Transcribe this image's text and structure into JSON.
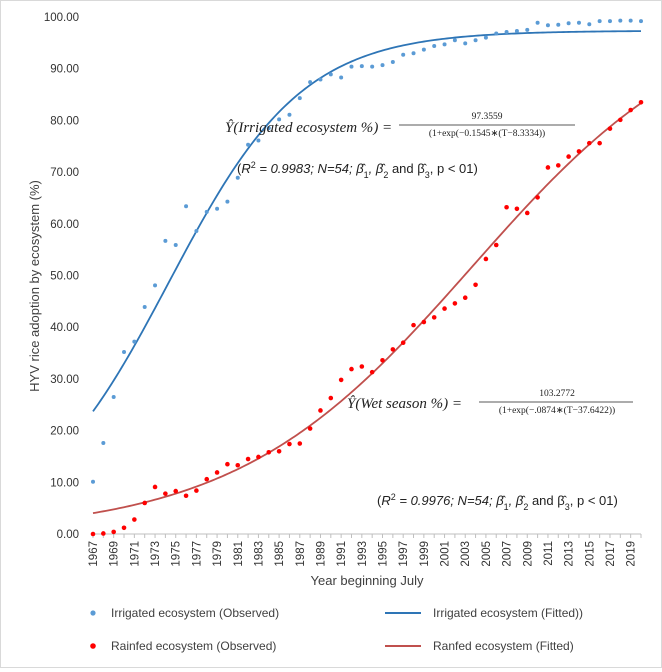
{
  "chart_data": {
    "type": "scatter",
    "xlabel": "Year beginning July",
    "ylabel": "HYV rice adoption by ecosystem (%)",
    "ylim": [
      0,
      100
    ],
    "yticks": [
      "0.00",
      "10.00",
      "20.00",
      "30.00",
      "40.00",
      "50.00",
      "60.00",
      "70.00",
      "80.00",
      "90.00",
      "100.00"
    ],
    "xlim": [
      1967,
      2020
    ],
    "xticks": [
      "1967",
      "1969",
      "1971",
      "1973",
      "1975",
      "1977",
      "1979",
      "1981",
      "1983",
      "1985",
      "1987",
      "1989",
      "1991",
      "1993",
      "1995",
      "1997",
      "1999",
      "2001",
      "2003",
      "2005",
      "2007",
      "2009",
      "2011",
      "2013",
      "2015",
      "2017",
      "2019"
    ],
    "grid": false,
    "legend_position": "bottom",
    "series": [
      {
        "name": "Irrigated ecosystem (Observed)",
        "kind": "scatter",
        "color": "#5b9bd5",
        "x": [
          1967,
          1968,
          1969,
          1970,
          1971,
          1972,
          1973,
          1974,
          1975,
          1976,
          1977,
          1978,
          1979,
          1980,
          1981,
          1982,
          1983,
          1984,
          1985,
          1986,
          1987,
          1988,
          1989,
          1990,
          1991,
          1992,
          1993,
          1994,
          1995,
          1996,
          1997,
          1998,
          1999,
          2000,
          2001,
          2002,
          2003,
          2004,
          2005,
          2006,
          2007,
          2008,
          2009,
          2010,
          2011,
          2012,
          2013,
          2014,
          2015,
          2016,
          2017,
          2018,
          2019,
          2020
        ],
        "y": [
          10.1,
          17.6,
          26.5,
          35.2,
          37.2,
          43.9,
          48.1,
          56.7,
          55.9,
          63.4,
          58.6,
          62.3,
          62.9,
          64.3,
          68.9,
          75.3,
          76.1,
          78.5,
          80.2,
          81.1,
          84.3,
          87.4,
          87.9,
          88.9,
          88.3,
          90.4,
          90.5,
          90.4,
          90.7,
          91.3,
          92.7,
          93.0,
          93.7,
          94.4,
          94.7,
          95.5,
          94.9,
          95.5,
          96.0,
          96.8,
          97.1,
          97.3,
          97.5,
          98.9,
          98.4,
          98.5,
          98.8,
          98.9,
          98.6,
          99.2,
          99.2,
          99.3,
          99.3,
          99.2
        ]
      },
      {
        "name": "Irrigated ecosystem (Fitted))",
        "kind": "line",
        "color": "#2e75b6",
        "model": {
          "a": 97.3559,
          "b": 0.1545,
          "c": 8.3334
        }
      },
      {
        "name": "Rainfed ecosystem (Observed)",
        "kind": "scatter",
        "color": "#ff0000",
        "x": [
          1967,
          1968,
          1969,
          1970,
          1971,
          1972,
          1973,
          1974,
          1975,
          1976,
          1977,
          1978,
          1979,
          1980,
          1981,
          1982,
          1983,
          1984,
          1985,
          1986,
          1987,
          1988,
          1989,
          1990,
          1991,
          1992,
          1993,
          1994,
          1995,
          1996,
          1997,
          1998,
          1999,
          2000,
          2001,
          2002,
          2003,
          2004,
          2005,
          2006,
          2007,
          2008,
          2009,
          2010,
          2011,
          2012,
          2013,
          2014,
          2015,
          2016,
          2017,
          2018,
          2019,
          2020
        ],
        "y": [
          0.0,
          0.1,
          0.4,
          1.2,
          2.8,
          6.0,
          9.1,
          7.8,
          8.3,
          7.4,
          8.4,
          10.6,
          11.9,
          13.5,
          13.3,
          14.5,
          14.9,
          15.8,
          16.0,
          17.4,
          17.5,
          20.4,
          23.9,
          26.3,
          29.8,
          31.9,
          32.4,
          31.3,
          33.6,
          35.7,
          37.0,
          40.4,
          41.0,
          41.9,
          43.6,
          44.6,
          45.7,
          48.2,
          53.2,
          55.9,
          63.2,
          62.9,
          62.1,
          65.1,
          70.9,
          71.3,
          73.0,
          74.0,
          75.6,
          75.6,
          78.4,
          80.1,
          82.0,
          83.5
        ]
      },
      {
        "name": "Ranfed ecosystem (Fitted)",
        "kind": "line",
        "color": "#c0504d",
        "model": {
          "a": 103.2772,
          "b": 0.0874,
          "c": 37.6422
        }
      }
    ],
    "annotations": {
      "irrigated_equation": {
        "lhs_prefix": "Ŷ(",
        "lhs_label": "Irrigated ecosystem %",
        "lhs_suffix": ") =",
        "numerator": "97.3559",
        "denominator": "(1+exp(−0.1545∗(T−8.3334))"
      },
      "irrigated_stats": {
        "r_symbol": "R",
        "r_power": "2",
        "rest": " = 0.9983; N=54; β̂",
        "b1": "1",
        "mid1": ", β̂",
        "b2": "2",
        "mid2": " and β̂",
        "b3": "3",
        "tail": ", p < 01)",
        "open": "("
      },
      "wet_equation": {
        "lhs_prefix": "Ŷ(",
        "lhs_label": "Wet season %",
        "lhs_suffix": ") =",
        "numerator": "103.2772",
        "denominator": "(1+exp(−.0874∗(T−37.6422))"
      },
      "wet_stats": {
        "r_symbol": "R",
        "r_power": "2",
        "rest": " = 0.9976; N=54; β̂",
        "b1": "1",
        "mid1": ", β̂",
        "b2": "2",
        "mid2": " and β̂",
        "b3": "3",
        "tail": ", p < 01)",
        "open": "("
      }
    }
  }
}
